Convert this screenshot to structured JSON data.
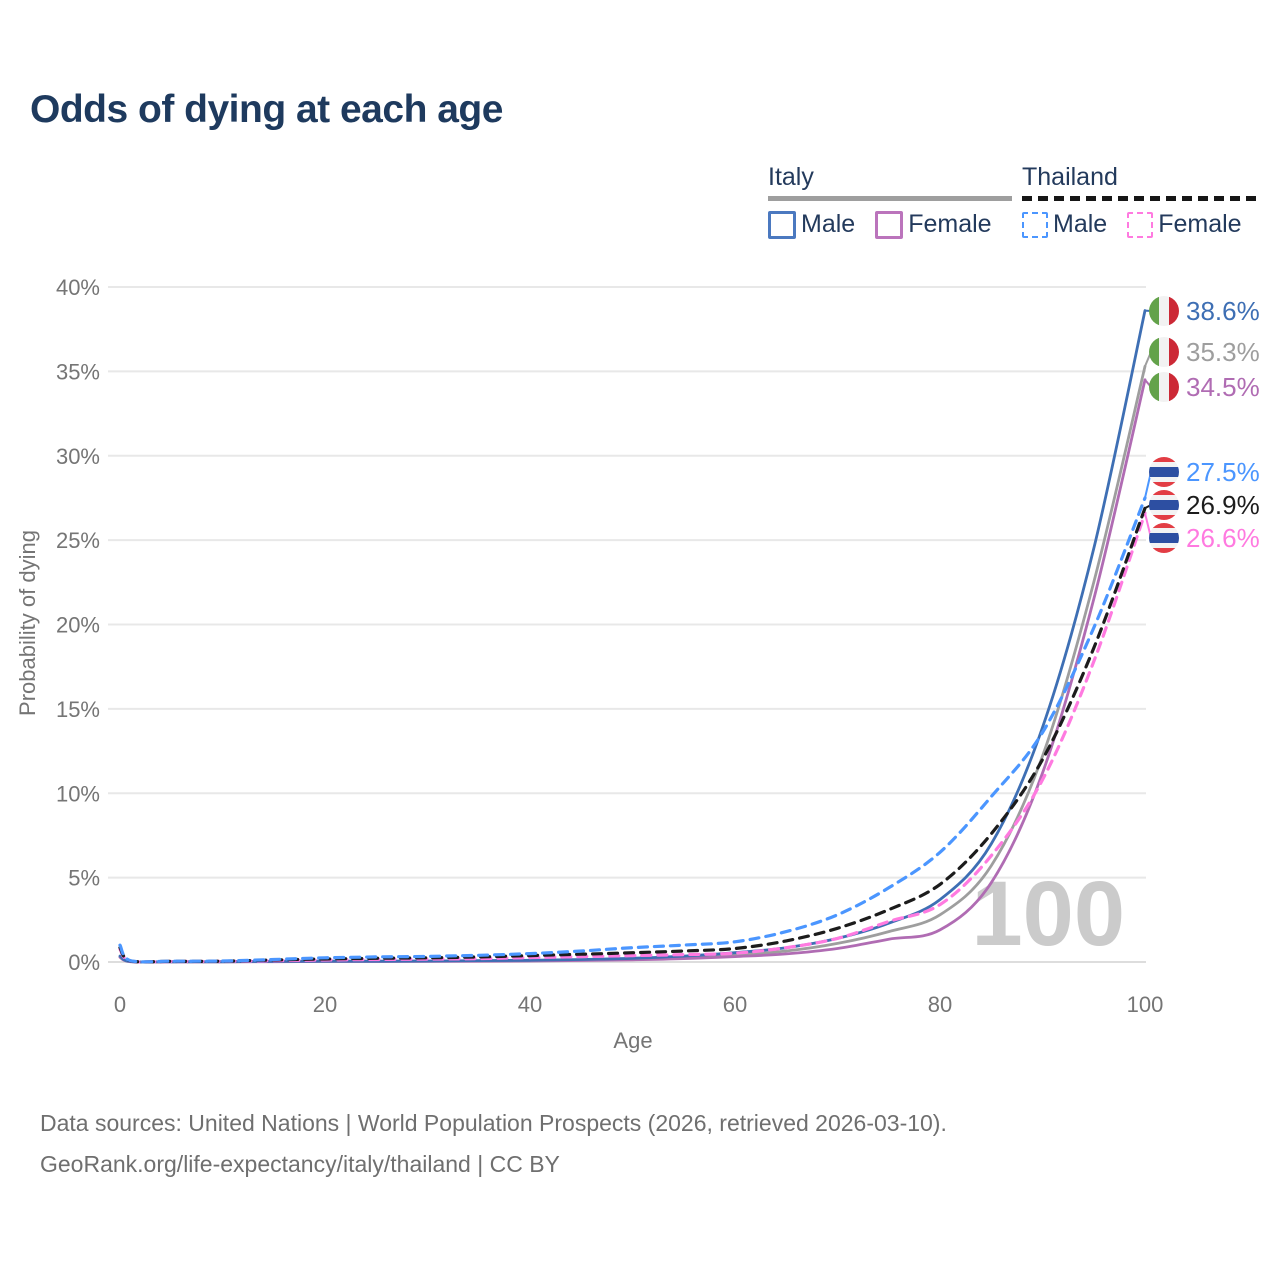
{
  "title": "Odds of dying at each age",
  "legend": {
    "groups": [
      {
        "name": "Italy",
        "line_style": "solid",
        "line_color": "#9e9e9e",
        "items": [
          {
            "label": "Male",
            "color": "#4b79c0"
          },
          {
            "label": "Female",
            "color": "#bb74bc"
          }
        ]
      },
      {
        "name": "Thailand",
        "line_style": "dashed",
        "line_color": "#161616",
        "items": [
          {
            "label": "Male",
            "color": "#4b96ff"
          },
          {
            "label": "Female",
            "color": "#ff7ae0"
          }
        ]
      }
    ]
  },
  "axes": {
    "y_title": "Probability of dying",
    "x_title": "Age",
    "y_ticks": [
      "0%",
      "5%",
      "10%",
      "15%",
      "20%",
      "25%",
      "30%",
      "35%",
      "40%"
    ],
    "x_ticks": [
      "0",
      "20",
      "40",
      "60",
      "80",
      "100"
    ]
  },
  "watermark": "100",
  "footer": {
    "line1": "Data sources: United Nations | World Population Prospects (2026, retrieved 2026-03-10).",
    "line2": "GeoRank.org/life-expectancy/italy/thailand | CC BY"
  },
  "colors": {
    "title_text": "#1e3a5e",
    "axis_text": "#757575",
    "grid": "#e8e8e8",
    "zero_grid": "#dddddd",
    "watermark": "#cbcbcb",
    "footer_text": "#6f6f6f"
  },
  "flags": {
    "italy": [
      "#63a24a",
      "#f2f2f2",
      "#cc2936"
    ],
    "thailand": [
      "#e23d44",
      "#f3f3f3",
      "#2d4fa2"
    ]
  },
  "chart_data": {
    "type": "line",
    "title": "Odds of dying at each age",
    "xlabel": "Age",
    "ylabel": "Probability of dying",
    "xlim": [
      0,
      100
    ],
    "ylim": [
      0,
      40
    ],
    "grid": true,
    "legend_position": "top-right",
    "x": [
      0,
      1,
      5,
      10,
      15,
      20,
      25,
      30,
      35,
      40,
      45,
      50,
      55,
      60,
      65,
      70,
      75,
      80,
      85,
      90,
      95,
      100
    ],
    "series": [
      {
        "name": "Italy Male",
        "color": "#3e6fb4",
        "dash": false,
        "flag": "italy",
        "end_label": "38.6%",
        "end_value": 38.6,
        "values": [
          0.35,
          0.03,
          0.01,
          0.02,
          0.04,
          0.05,
          0.05,
          0.06,
          0.08,
          0.1,
          0.15,
          0.22,
          0.35,
          0.55,
          0.85,
          1.4,
          2.3,
          3.7,
          7.0,
          13.9,
          24.5,
          38.6
        ]
      },
      {
        "name": "Italy (both sexes)",
        "color": "#9e9e9e",
        "dash": false,
        "flag": "italy",
        "end_label": "35.3%",
        "end_value": 35.3,
        "values": [
          0.3,
          0.03,
          0.01,
          0.01,
          0.03,
          0.04,
          0.04,
          0.05,
          0.06,
          0.08,
          0.12,
          0.18,
          0.28,
          0.42,
          0.65,
          1.1,
          1.8,
          2.8,
          5.7,
          12.2,
          22.5,
          35.3
        ]
      },
      {
        "name": "Italy Female",
        "color": "#b06cb3",
        "dash": false,
        "flag": "italy",
        "end_label": "34.5%",
        "end_value": 34.5,
        "values": [
          0.28,
          0.02,
          0.01,
          0.01,
          0.02,
          0.03,
          0.03,
          0.04,
          0.05,
          0.06,
          0.09,
          0.13,
          0.2,
          0.32,
          0.48,
          0.8,
          1.35,
          1.9,
          4.7,
          11.2,
          21.5,
          34.5
        ]
      },
      {
        "name": "Thailand Male",
        "color": "#4b96ff",
        "dash": true,
        "flag": "thailand",
        "end_label": "27.5%",
        "end_value": 27.5,
        "values": [
          1.0,
          0.08,
          0.05,
          0.06,
          0.15,
          0.25,
          0.3,
          0.33,
          0.4,
          0.5,
          0.65,
          0.85,
          1.0,
          1.2,
          1.8,
          2.8,
          4.4,
          6.5,
          9.8,
          13.6,
          19.8,
          27.5
        ]
      },
      {
        "name": "Thailand (both sexes)",
        "color": "#1c1c1c",
        "dash": true,
        "flag": "thailand",
        "end_label": "26.9%",
        "end_value": 26.9,
        "values": [
          0.85,
          0.07,
          0.04,
          0.05,
          0.12,
          0.18,
          0.22,
          0.25,
          0.3,
          0.38,
          0.46,
          0.55,
          0.65,
          0.8,
          1.25,
          2.0,
          3.1,
          4.6,
          7.6,
          12.0,
          18.6,
          26.9
        ]
      },
      {
        "name": "Thailand Female",
        "color": "#ff7ae0",
        "dash": true,
        "flag": "thailand",
        "end_label": "26.6%",
        "end_value": 26.6,
        "values": [
          0.75,
          0.06,
          0.03,
          0.04,
          0.08,
          0.12,
          0.15,
          0.17,
          0.2,
          0.26,
          0.32,
          0.38,
          0.44,
          0.52,
          0.85,
          1.4,
          2.4,
          3.4,
          6.3,
          10.8,
          17.8,
          26.6
        ]
      }
    ]
  }
}
